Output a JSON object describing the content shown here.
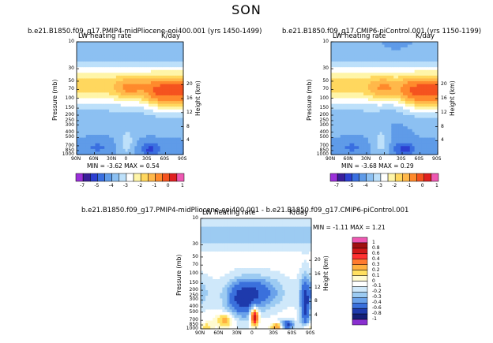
{
  "figure": {
    "title": "SON"
  },
  "panels": [
    {
      "id": "p1",
      "title": "b.e21.B1850.f09_g17.PMIP4-midPliocene-eoi400.001  (yrs 1450-1499)",
      "left_label": "LW heating rate",
      "right_label": "K/day",
      "ylabel": "Pressure (mb)",
      "y2label": "Height (km)",
      "stats": "MIN = -3.62  MAX = 0.54"
    },
    {
      "id": "p2",
      "title": "b.e21.B1850.f09_g17.CMIP6-piControl.001  (yrs 1150-1199)",
      "left_label": "LW heating rate",
      "right_label": "K/day",
      "ylabel": "Pressure (mb)",
      "y2label": "Height (km)",
      "stats": "MIN = -3.68  MAX = 0.29"
    },
    {
      "id": "p3",
      "title": "b.e21.B1850.f09_g17.PMIP4-midPliocene-eoi400.001 - b.e21.B1850.f09_g17.CMIP6-piControl.001",
      "left_label": "LW heating rate",
      "right_label": "K/day",
      "ylabel": "Pressure (mb)",
      "y2label": "Height (km)",
      "stats": "MIN = -1.11  MAX = 1.21"
    }
  ],
  "chart_data": [
    {
      "type": "heatmap",
      "panel": "p1",
      "x_ticks": [
        "90N",
        "60N",
        "30N",
        "0",
        "30S",
        "60S",
        "90S"
      ],
      "y_ticks": [
        10,
        30,
        50,
        70,
        100,
        150,
        200,
        250,
        300,
        400,
        500,
        700,
        850,
        1000
      ],
      "y_tick_labels": [
        "10",
        "30",
        "50",
        "70",
        "100",
        "150",
        "200",
        "250",
        "300",
        "400",
        "500",
        "700",
        "850",
        "1000"
      ],
      "y2_ticks": [
        20,
        16,
        12,
        8,
        4
      ],
      "ylim": [
        1000,
        10
      ],
      "scale": "log-pressure",
      "colorbar": {
        "labels": [
          "-7",
          "-5",
          "-4",
          "-3",
          "-2",
          "-1",
          "0",
          "1"
        ],
        "colors": [
          "#9b30d9",
          "#3a1e9a",
          "#2c3fd1",
          "#3a6fe0",
          "#5f9be8",
          "#8cc0f2",
          "#bde0fa",
          "#ffffff",
          "#fff5a8",
          "#ffd75e",
          "#ffb84a",
          "#ff8a2c",
          "#f5531f",
          "#e02020",
          "#ee58b2"
        ]
      }
    },
    {
      "type": "heatmap",
      "panel": "p2",
      "x_ticks": [
        "90N",
        "60N",
        "30N",
        "0",
        "30S",
        "60S",
        "90S"
      ],
      "y_ticks": [
        10,
        30,
        50,
        70,
        100,
        150,
        200,
        250,
        300,
        400,
        500,
        700,
        850,
        1000
      ],
      "y_tick_labels": [
        "10",
        "30",
        "50",
        "70",
        "100",
        "150",
        "200",
        "250",
        "300",
        "400",
        "500",
        "700",
        "850",
        "1000"
      ],
      "y2_ticks": [
        20,
        16,
        12,
        8,
        4
      ],
      "ylim": [
        1000,
        10
      ],
      "scale": "log-pressure",
      "colorbar": {
        "labels": [
          "-7",
          "-5",
          "-4",
          "-3",
          "-2",
          "-1",
          "0",
          "1"
        ],
        "colors": [
          "#9b30d9",
          "#3a1e9a",
          "#2c3fd1",
          "#3a6fe0",
          "#5f9be8",
          "#8cc0f2",
          "#bde0fa",
          "#ffffff",
          "#fff5a8",
          "#ffd75e",
          "#ffb84a",
          "#ff8a2c",
          "#f5531f",
          "#e02020",
          "#ee58b2"
        ]
      }
    },
    {
      "type": "heatmap",
      "panel": "p3",
      "x_ticks": [
        "90N",
        "60N",
        "30N",
        "0",
        "30S",
        "60S",
        "90S"
      ],
      "y_ticks": [
        10,
        30,
        50,
        70,
        100,
        150,
        200,
        250,
        300,
        400,
        500,
        700,
        850,
        1000
      ],
      "y_tick_labels": [
        "10",
        "30",
        "50",
        "70",
        "100",
        "150",
        "200",
        "250",
        "300",
        "400",
        "500",
        "700",
        "850",
        "1000"
      ],
      "y2_ticks": [
        20,
        16,
        12,
        8,
        4
      ],
      "ylim": [
        1000,
        10
      ],
      "scale": "log-pressure",
      "colorbar": {
        "labels": [
          "1",
          "0.8",
          "0.6",
          "0.4",
          "0.3",
          "0.2",
          "0.1",
          "0",
          "-0.1",
          "-0.2",
          "-0.3",
          "-0.4",
          "-0.6",
          "-0.8",
          "-1"
        ],
        "colors": [
          "#ee58b2",
          "#a01010",
          "#d01818",
          "#ff3030",
          "#ff7a30",
          "#ffb040",
          "#ffe060",
          "#fffbd0",
          "#ffffff",
          "#cfe8fa",
          "#9ccbf2",
          "#6aa2ea",
          "#3a70dc",
          "#1e3aac",
          "#141f78",
          "#8a2fd0"
        ]
      }
    }
  ]
}
